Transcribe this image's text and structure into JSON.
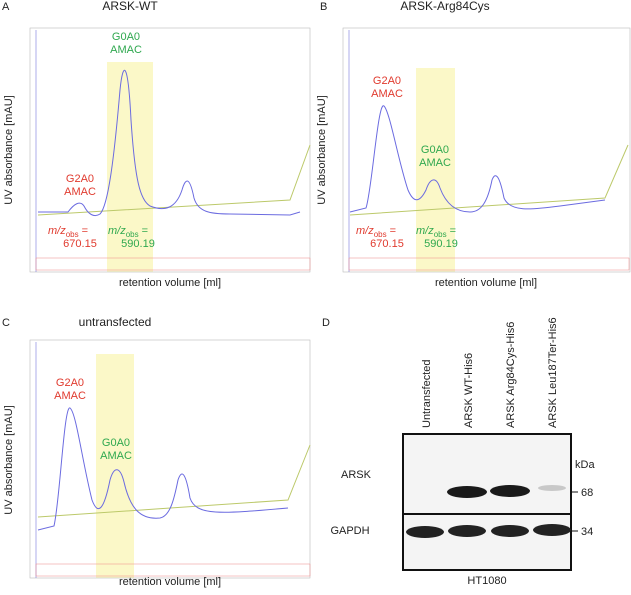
{
  "panels": [
    {
      "letter": "A",
      "title": "ARSK-WT",
      "y_axis_label": "UV absorbance [mAU]",
      "x_axis_label": "retention volume [ml]",
      "annotations": [
        {
          "lines": [
            "G0A0",
            "AMAC"
          ]
        },
        {
          "lines": [
            "G2A0",
            "AMAC"
          ]
        }
      ],
      "mz": [
        {
          "symbol": "m/z",
          "subscript": "obs",
          "equals": "=",
          "value": 670.15
        },
        {
          "symbol": "m/z",
          "subscript": "obs",
          "equals": "=",
          "value": 590.19
        }
      ]
    },
    {
      "letter": "B",
      "title": "ARSK-Arg84Cys",
      "y_axis_label": "UV absorbance [mAU]",
      "x_axis_label": "retention volume [ml]",
      "annotations": [
        {
          "lines": [
            "G2A0",
            "AMAC"
          ]
        },
        {
          "lines": [
            "G0A0",
            "AMAC"
          ]
        }
      ],
      "mz": [
        {
          "symbol": "m/z",
          "subscript": "obs",
          "equals": "=",
          "value": 670.15
        },
        {
          "symbol": "m/z",
          "subscript": "obs",
          "equals": "=",
          "value": 590.19
        }
      ]
    },
    {
      "letter": "C",
      "title": "untransfected",
      "y_axis_label": "UV absorbance [mAU]",
      "x_axis_label": "retention volume [ml]",
      "annotations": [
        {
          "lines": [
            "G2A0",
            "AMAC"
          ]
        },
        {
          "lines": [
            "G0A0",
            "AMAC"
          ]
        }
      ]
    }
  ],
  "blot": {
    "letter": "D",
    "lanes": [
      "Untransfected",
      "ARSK WT-His6",
      "ARSK Arg84Cys-His6",
      "ARSK Leu187Ter-His6"
    ],
    "rows": [
      "ARSK",
      "GAPDH"
    ],
    "unit": "kDa",
    "markers": [
      68,
      34
    ],
    "cell_line": "HT1080"
  }
}
